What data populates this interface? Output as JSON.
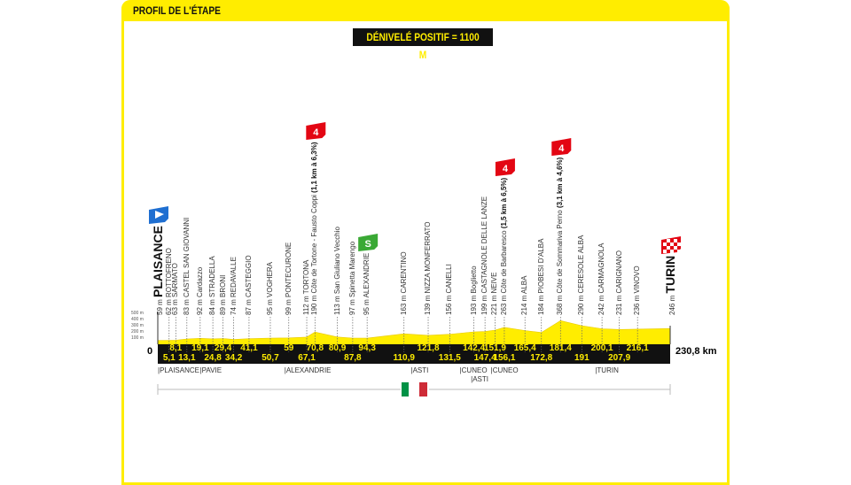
{
  "header": {
    "title": "PROFIL DE L'ÉTAPE"
  },
  "summary": {
    "elevation_gain": "DÉNIVELÉ POSITIF = 1100 M"
  },
  "colors": {
    "accent": "#ffed00",
    "band": "#111111",
    "climb_flag": "#e30613",
    "sprint_flag": "#3aa935",
    "start_flag": "#1f6fd1"
  },
  "axis": {
    "altitudes": [
      "500 m",
      "400 m",
      "300 m",
      "200 m",
      "100 m"
    ],
    "start_km": "0",
    "total": "230,8 km"
  },
  "chart_data": {
    "type": "area",
    "xlabel": "",
    "ylabel": "",
    "distance_unit": "km",
    "altitude_unit": "m",
    "waypoints": [
      {
        "km": 0,
        "km_label": "",
        "alt": 59,
        "name": "PLAISANCE",
        "type": "start"
      },
      {
        "km": 5.1,
        "km_label": "5,1",
        "alt": 62,
        "name": "ROTTOFRENO"
      },
      {
        "km": 8.1,
        "km_label": "8,1",
        "alt": 63,
        "name": "SARMATO"
      },
      {
        "km": 13.1,
        "km_label": "13,1",
        "alt": 83,
        "name": "CASTEL SAN GIOVANNI"
      },
      {
        "km": 19.1,
        "km_label": "19,1",
        "alt": 92,
        "name": "Cardazzo"
      },
      {
        "km": 24.8,
        "km_label": "24,8",
        "alt": 84,
        "name": "STRADELLA"
      },
      {
        "km": 29.4,
        "km_label": "29,4",
        "alt": 89,
        "name": "BRONI"
      },
      {
        "km": 34.2,
        "km_label": "34,2",
        "alt": 74,
        "name": "REDAVALLE"
      },
      {
        "km": 41.1,
        "km_label": "41,1",
        "alt": 87,
        "name": "CASTEGGIO"
      },
      {
        "km": 50.7,
        "km_label": "50,7",
        "alt": 95,
        "name": "VOGHERA"
      },
      {
        "km": 59,
        "km_label": "59",
        "alt": 99,
        "name": "PONTECURONE"
      },
      {
        "km": 67.1,
        "km_label": "67,1",
        "alt": 112,
        "name": "TORTONA"
      },
      {
        "km": 70.8,
        "km_label": "70,8",
        "alt": 190,
        "name": "Côte de Tortone - Fausto Coppi",
        "climb": "(1,1 km à 6,3%)",
        "category": "4",
        "type": "climb"
      },
      {
        "km": 80.9,
        "km_label": "80,9",
        "alt": 113,
        "name": "San Giuliano Vecchio"
      },
      {
        "km": 87.8,
        "km_label": "87,8",
        "alt": 97,
        "name": "Spinetta Marengo"
      },
      {
        "km": 94.3,
        "km_label": "94,3",
        "alt": 95,
        "name": "ALEXANDRIE",
        "type": "sprint",
        "category": "S"
      },
      {
        "km": 110.9,
        "km_label": "110,9",
        "alt": 163,
        "name": "CARENTINO"
      },
      {
        "km": 121.8,
        "km_label": "121,8",
        "alt": 139,
        "name": "NIZZA MONFERRATO"
      },
      {
        "km": 131.5,
        "km_label": "131,5",
        "alt": 156,
        "name": "CANELLI"
      },
      {
        "km": 142.4,
        "km_label": "142,4",
        "alt": 193,
        "name": "Boglietto"
      },
      {
        "km": 147.4,
        "km_label": "147,4",
        "alt": 199,
        "name": "CASTAGNOLE DELLE LANZE"
      },
      {
        "km": 151.9,
        "km_label": "151,9",
        "alt": 221,
        "name": "NEIVE"
      },
      {
        "km": 156.1,
        "km_label": "156,1",
        "alt": 263,
        "name": "Côte de Barbaresco",
        "climb": "(1,5 km à 6,5%)",
        "category": "4",
        "type": "climb"
      },
      {
        "km": 165.4,
        "km_label": "165,4",
        "alt": 214,
        "name": "ALBA"
      },
      {
        "km": 172.8,
        "km_label": "172,8",
        "alt": 184,
        "name": "PIOBESI D'ALBA"
      },
      {
        "km": 181.4,
        "km_label": "181,4",
        "alt": 368,
        "name": "Côte de Sommariva Perno",
        "climb": "(3,1 km à 4,6%)",
        "category": "4",
        "type": "climb"
      },
      {
        "km": 191,
        "km_label": "191",
        "alt": 290,
        "name": "CERESOLE ALBA"
      },
      {
        "km": 200.1,
        "km_label": "200,1",
        "alt": 242,
        "name": "CARMAGNOLA"
      },
      {
        "km": 207.9,
        "km_label": "207,9",
        "alt": 231,
        "name": "CARIGNANO"
      },
      {
        "km": 216.1,
        "km_label": "216,1",
        "alt": 236,
        "name": "VINOVO"
      },
      {
        "km": 230.8,
        "km_label": "",
        "alt": 246,
        "name": "TURIN",
        "type": "finish"
      }
    ]
  },
  "regions": [
    "|PLAISANCE",
    "|PAVIE",
    "|ALEXANDRIE",
    "|ASTI",
    "|CUNEO",
    "|ASTI",
    "|CUNEO",
    "|TURIN"
  ],
  "country_flag": "italy-flag"
}
